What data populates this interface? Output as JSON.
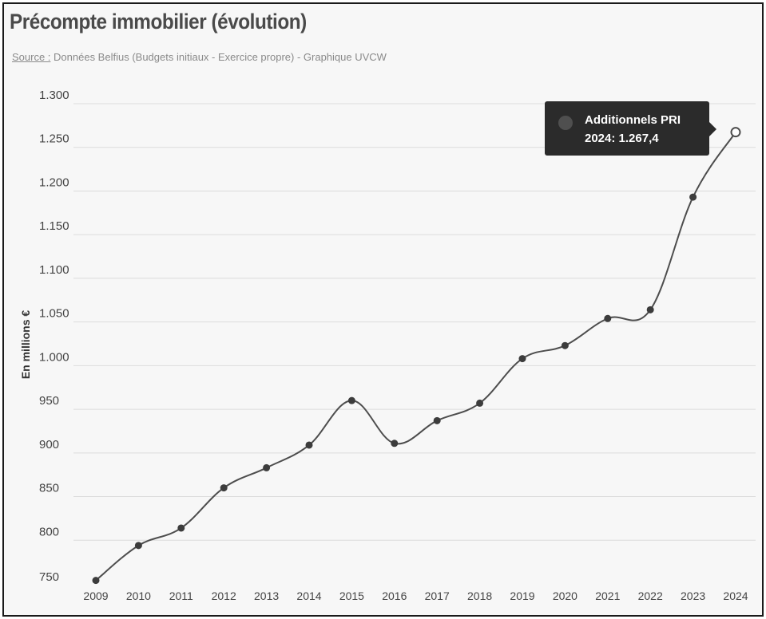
{
  "header": {
    "title": "Précompte immobilier (évolution)",
    "source_label": "Source :",
    "source_text": " Données Belfius (Budgets initiaux - Exercice propre) - Graphique UVCW"
  },
  "tooltip": {
    "series": "Additionnels PRI",
    "value": "2024: 1.267,4"
  },
  "chart_data": {
    "type": "line",
    "title": "Précompte immobilier (évolution)",
    "ylabel": "En millions €",
    "xlabel": "",
    "ylim": [
      750,
      1300
    ],
    "y_ticks": [
      {
        "value": 750,
        "label": "750"
      },
      {
        "value": 800,
        "label": "800"
      },
      {
        "value": 850,
        "label": "850"
      },
      {
        "value": 900,
        "label": "900"
      },
      {
        "value": 950,
        "label": "950"
      },
      {
        "value": 1000,
        "label": "1.000"
      },
      {
        "value": 1050,
        "label": "1.050"
      },
      {
        "value": 1100,
        "label": "1.100"
      },
      {
        "value": 1150,
        "label": "1.150"
      },
      {
        "value": 1200,
        "label": "1.200"
      },
      {
        "value": 1250,
        "label": "1.250"
      },
      {
        "value": 1300,
        "label": "1.300"
      }
    ],
    "categories": [
      "2009",
      "2010",
      "2011",
      "2012",
      "2013",
      "2014",
      "2015",
      "2016",
      "2017",
      "2018",
      "2019",
      "2020",
      "2021",
      "2022",
      "2023",
      "2024"
    ],
    "series": [
      {
        "name": "Additionnels PRI",
        "values": [
          754,
          794,
          814,
          860,
          883,
          909,
          960,
          911,
          937,
          957,
          1008,
          1023,
          1054,
          1064,
          1193,
          1267.4
        ]
      }
    ],
    "highlighted_index": 15,
    "grid": true,
    "colors": {
      "line": "#4d4d4d",
      "marker": "#3c3c3c",
      "grid": "#dcdcdc",
      "highlight_fill": "#ffffff"
    }
  }
}
